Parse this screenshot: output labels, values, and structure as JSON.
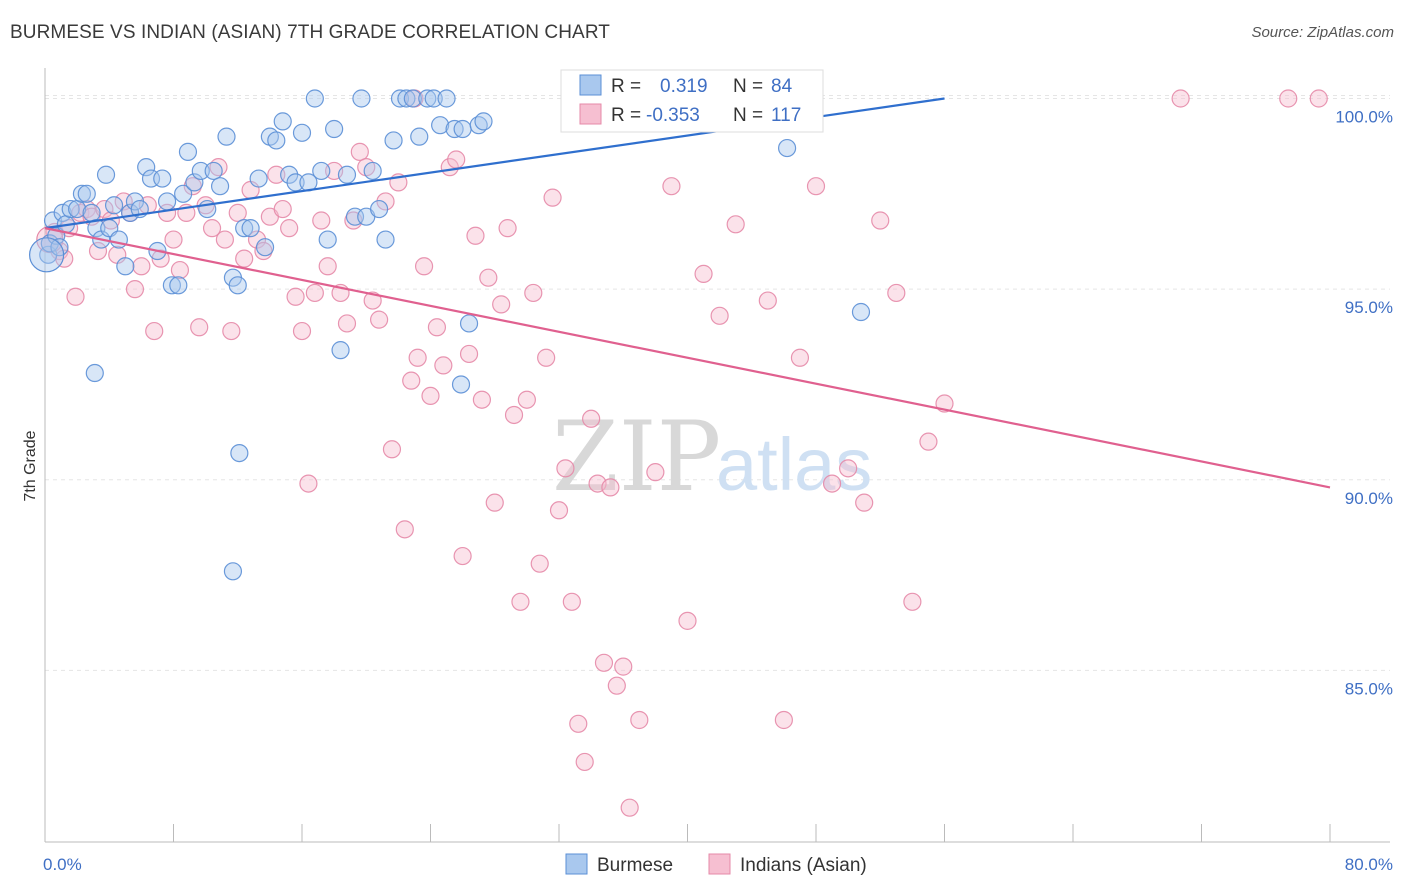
{
  "title": "BURMESE VS INDIAN (ASIAN) 7TH GRADE CORRELATION CHART",
  "source": "Source: ZipAtlas.com",
  "watermark": {
    "zip": "ZIP",
    "atlas": "atlas"
  },
  "colors": {
    "burmese_fill": "#a9c8ee",
    "burmese_stroke": "#5b8fd6",
    "burmese_line": "#2f6fce",
    "indian_fill": "#f6bfd1",
    "indian_stroke": "#e58aa8",
    "indian_line": "#e0608f",
    "axis_label": "#3f6fc4",
    "grid": "#e5e5e5"
  },
  "legend": {
    "rows": [
      {
        "r_label": "R =",
        "r_value": "0.319",
        "n_label": "N =",
        "n_value": "84"
      },
      {
        "r_label": "R =",
        "r_value": "-0.353",
        "n_label": "N =",
        "n_value": "117"
      }
    ]
  },
  "bottom_legend": [
    "Burmese",
    "Indians (Asian)"
  ],
  "chart_data": {
    "type": "scatter",
    "ylabel": "7th Grade",
    "xlim": [
      0,
      80
    ],
    "ylim": [
      80.5,
      100.8
    ],
    "x_tick_labels": [
      {
        "value": 0,
        "label": "0.0%"
      },
      {
        "value": 80,
        "label": "80.0%"
      }
    ],
    "y_tick_labels": [
      {
        "value": 100,
        "label": "100.0%"
      },
      {
        "value": 95,
        "label": "95.0%"
      },
      {
        "value": 90,
        "label": "90.0%"
      },
      {
        "value": 85,
        "label": "85.0%"
      }
    ],
    "x_minor_ticks": [
      0,
      8,
      16,
      24,
      32,
      40,
      48,
      56,
      64,
      72,
      80
    ],
    "grid": "horizontal-dashed",
    "series": [
      {
        "name": "Burmese",
        "trend": {
          "x": [
            0,
            56
          ],
          "y": [
            96.6,
            100.0
          ]
        },
        "points": [
          [
            0.2,
            95.9
          ],
          [
            0.3,
            96.2
          ],
          [
            0.5,
            96.8
          ],
          [
            0.7,
            96.4
          ],
          [
            0.9,
            96.1
          ],
          [
            1.1,
            97.0
          ],
          [
            1.3,
            96.7
          ],
          [
            1.6,
            97.1
          ],
          [
            2.0,
            97.1
          ],
          [
            2.3,
            97.5
          ],
          [
            2.6,
            97.5
          ],
          [
            2.9,
            97.0
          ],
          [
            3.2,
            96.6
          ],
          [
            3.5,
            96.3
          ],
          [
            3.8,
            98.0
          ],
          [
            4.0,
            96.6
          ],
          [
            4.3,
            97.2
          ],
          [
            4.6,
            96.3
          ],
          [
            5.0,
            95.6
          ],
          [
            5.3,
            97.0
          ],
          [
            5.6,
            97.3
          ],
          [
            5.9,
            97.1
          ],
          [
            6.3,
            98.2
          ],
          [
            6.6,
            97.9
          ],
          [
            7.0,
            96.0
          ],
          [
            7.3,
            97.9
          ],
          [
            7.6,
            97.3
          ],
          [
            7.9,
            95.1
          ],
          [
            8.3,
            95.1
          ],
          [
            8.6,
            97.5
          ],
          [
            8.9,
            98.6
          ],
          [
            9.3,
            97.8
          ],
          [
            9.7,
            98.1
          ],
          [
            10.1,
            97.1
          ],
          [
            10.5,
            98.1
          ],
          [
            10.9,
            97.7
          ],
          [
            11.3,
            99.0
          ],
          [
            11.7,
            95.3
          ],
          [
            12.0,
            95.1
          ],
          [
            12.4,
            96.6
          ],
          [
            12.8,
            96.6
          ],
          [
            13.3,
            97.9
          ],
          [
            13.7,
            96.1
          ],
          [
            14.0,
            99.0
          ],
          [
            14.4,
            98.9
          ],
          [
            14.8,
            99.4
          ],
          [
            15.2,
            98.0
          ],
          [
            15.6,
            97.8
          ],
          [
            16.0,
            99.1
          ],
          [
            16.4,
            97.8
          ],
          [
            16.8,
            100.0
          ],
          [
            17.2,
            98.1
          ],
          [
            17.6,
            96.3
          ],
          [
            18.0,
            99.2
          ],
          [
            18.4,
            93.4
          ],
          [
            18.8,
            98.0
          ],
          [
            19.3,
            96.9
          ],
          [
            19.7,
            100.0
          ],
          [
            20.0,
            96.9
          ],
          [
            20.4,
            98.1
          ],
          [
            20.8,
            97.1
          ],
          [
            21.2,
            96.3
          ],
          [
            21.7,
            98.9
          ],
          [
            22.1,
            100.0
          ],
          [
            22.5,
            100.0
          ],
          [
            22.9,
            100.0
          ],
          [
            23.3,
            99.0
          ],
          [
            23.8,
            100.0
          ],
          [
            24.2,
            100.0
          ],
          [
            24.6,
            99.3
          ],
          [
            25.0,
            100.0
          ],
          [
            25.5,
            99.2
          ],
          [
            26.0,
            99.2
          ],
          [
            26.4,
            94.1
          ],
          [
            27.0,
            99.3
          ],
          [
            27.3,
            99.4
          ],
          [
            12.1,
            90.7
          ],
          [
            11.7,
            87.6
          ],
          [
            3.1,
            92.8
          ],
          [
            25.9,
            92.5
          ],
          [
            46.2,
            98.7
          ],
          [
            50.8,
            94.4
          ],
          [
            39.5,
            100.0
          ],
          [
            35.0,
            100.0
          ]
        ]
      },
      {
        "name": "Indians (Asian)",
        "trend": {
          "x": [
            0,
            80
          ],
          "y": [
            96.6,
            89.8
          ]
        },
        "points": [
          [
            0.3,
            96.2
          ],
          [
            0.6,
            96.5
          ],
          [
            0.9,
            96.0
          ],
          [
            1.2,
            95.8
          ],
          [
            1.5,
            96.6
          ],
          [
            1.9,
            94.8
          ],
          [
            2.2,
            97.0
          ],
          [
            2.6,
            97.1
          ],
          [
            2.9,
            96.9
          ],
          [
            3.3,
            96.0
          ],
          [
            3.7,
            97.1
          ],
          [
            4.1,
            96.8
          ],
          [
            4.5,
            95.9
          ],
          [
            4.9,
            97.3
          ],
          [
            5.3,
            97.0
          ],
          [
            5.6,
            95.0
          ],
          [
            6.0,
            95.6
          ],
          [
            6.4,
            97.2
          ],
          [
            6.8,
            93.9
          ],
          [
            7.2,
            95.8
          ],
          [
            7.6,
            97.0
          ],
          [
            8.0,
            96.3
          ],
          [
            8.4,
            95.5
          ],
          [
            8.8,
            97.0
          ],
          [
            9.2,
            97.7
          ],
          [
            9.6,
            94.0
          ],
          [
            10.0,
            97.2
          ],
          [
            10.4,
            96.6
          ],
          [
            10.8,
            98.2
          ],
          [
            11.2,
            96.3
          ],
          [
            11.6,
            93.9
          ],
          [
            12.0,
            97.0
          ],
          [
            12.4,
            95.8
          ],
          [
            12.8,
            97.6
          ],
          [
            13.2,
            96.3
          ],
          [
            13.6,
            96.0
          ],
          [
            14.0,
            96.9
          ],
          [
            14.4,
            98.0
          ],
          [
            14.8,
            97.1
          ],
          [
            15.2,
            96.6
          ],
          [
            15.6,
            94.8
          ],
          [
            16.0,
            93.9
          ],
          [
            16.4,
            89.9
          ],
          [
            16.8,
            94.9
          ],
          [
            17.2,
            96.8
          ],
          [
            17.6,
            95.6
          ],
          [
            18.0,
            98.1
          ],
          [
            18.4,
            94.9
          ],
          [
            18.8,
            94.1
          ],
          [
            19.2,
            96.8
          ],
          [
            19.6,
            98.6
          ],
          [
            20.0,
            98.2
          ],
          [
            20.4,
            94.7
          ],
          [
            20.8,
            94.2
          ],
          [
            21.2,
            97.3
          ],
          [
            21.6,
            90.8
          ],
          [
            22.0,
            97.8
          ],
          [
            22.4,
            88.7
          ],
          [
            22.8,
            92.6
          ],
          [
            23.2,
            93.2
          ],
          [
            23.6,
            95.6
          ],
          [
            24.0,
            92.2
          ],
          [
            24.4,
            94.0
          ],
          [
            24.8,
            93.0
          ],
          [
            25.2,
            98.2
          ],
          [
            25.6,
            98.4
          ],
          [
            26.0,
            88.0
          ],
          [
            26.4,
            93.3
          ],
          [
            26.8,
            96.4
          ],
          [
            27.2,
            92.1
          ],
          [
            27.6,
            95.3
          ],
          [
            28.0,
            89.4
          ],
          [
            28.4,
            94.6
          ],
          [
            28.8,
            96.6
          ],
          [
            29.2,
            91.7
          ],
          [
            29.6,
            86.8
          ],
          [
            30.0,
            92.1
          ],
          [
            30.4,
            94.9
          ],
          [
            30.8,
            87.8
          ],
          [
            31.2,
            93.2
          ],
          [
            31.6,
            97.4
          ],
          [
            32.0,
            89.2
          ],
          [
            32.4,
            90.3
          ],
          [
            32.8,
            86.8
          ],
          [
            33.2,
            83.6
          ],
          [
            33.6,
            82.6
          ],
          [
            34.0,
            91.6
          ],
          [
            34.4,
            89.9
          ],
          [
            34.8,
            85.2
          ],
          [
            35.2,
            89.8
          ],
          [
            35.6,
            84.6
          ],
          [
            36.0,
            85.1
          ],
          [
            36.4,
            81.4
          ],
          [
            37.0,
            83.7
          ],
          [
            38.0,
            90.2
          ],
          [
            39.0,
            97.7
          ],
          [
            40.0,
            86.3
          ],
          [
            41.0,
            95.4
          ],
          [
            42.0,
            94.3
          ],
          [
            43.0,
            96.7
          ],
          [
            44.0,
            100.0
          ],
          [
            45.0,
            94.7
          ],
          [
            46.0,
            83.7
          ],
          [
            47.0,
            93.2
          ],
          [
            48.0,
            97.7
          ],
          [
            49.0,
            89.9
          ],
          [
            50.0,
            90.3
          ],
          [
            51.0,
            89.4
          ],
          [
            52.0,
            96.8
          ],
          [
            53.0,
            94.9
          ],
          [
            54.0,
            86.8
          ],
          [
            55.0,
            91.0
          ],
          [
            56.0,
            92.0
          ],
          [
            70.7,
            100.0
          ],
          [
            77.4,
            100.0
          ],
          [
            79.3,
            100.0
          ],
          [
            23.0,
            100.0
          ]
        ]
      }
    ]
  }
}
